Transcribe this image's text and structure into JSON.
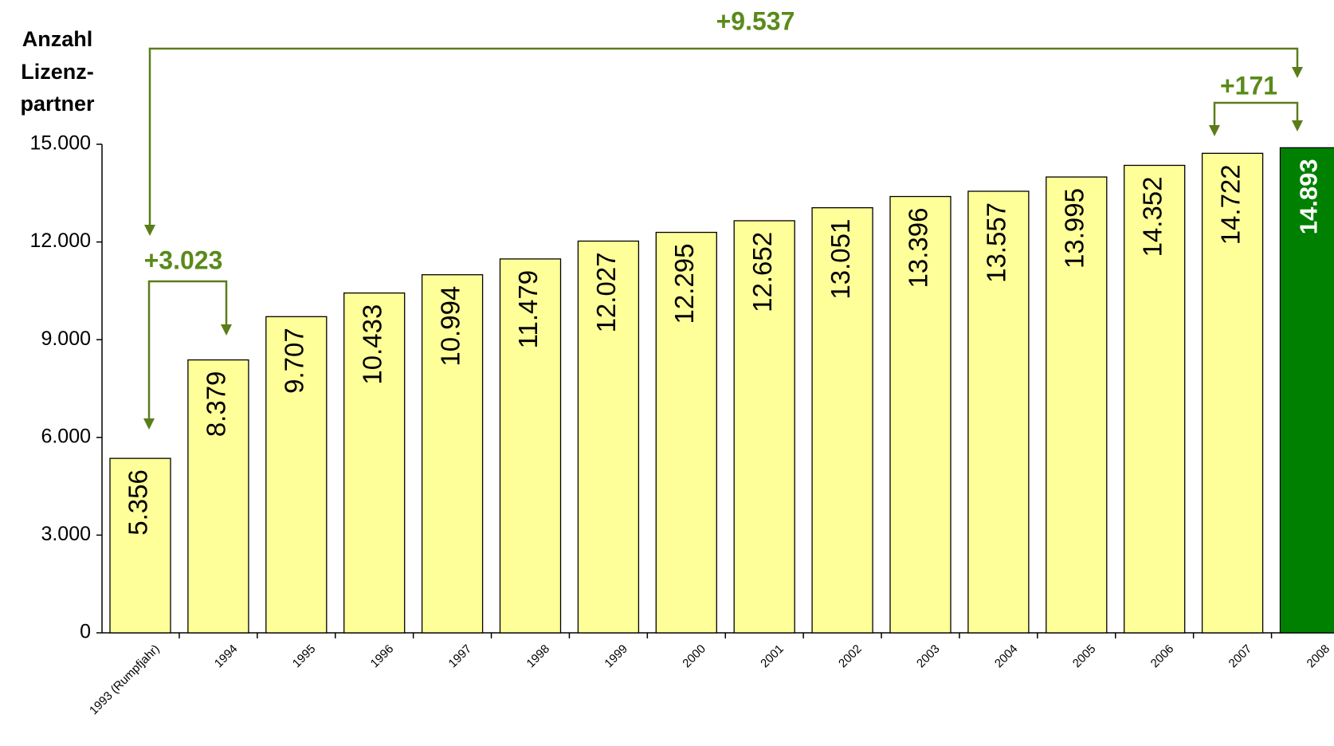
{
  "chart_data": {
    "type": "bar",
    "y_label_lines": [
      "Anzahl",
      "Lizenz-",
      "partner"
    ],
    "categories": [
      "1993 (Rumpfjahr)",
      "1994",
      "1995",
      "1996",
      "1997",
      "1998",
      "1999",
      "2000",
      "2001",
      "2002",
      "2003",
      "2004",
      "2005",
      "2006",
      "2007",
      "2008"
    ],
    "values": [
      5356,
      8379,
      9707,
      10433,
      10994,
      11479,
      12027,
      12295,
      12652,
      13051,
      13396,
      13557,
      13995,
      14352,
      14722,
      14893
    ],
    "value_labels": [
      "5.356",
      "8.379",
      "9.707",
      "10.433",
      "10.994",
      "11.479",
      "12.027",
      "12.295",
      "12.652",
      "13.051",
      "13.396",
      "13.557",
      "13.995",
      "14.352",
      "14.722",
      "14.893"
    ],
    "colors": [
      "#ffff99",
      "#ffff99",
      "#ffff99",
      "#ffff99",
      "#ffff99",
      "#ffff99",
      "#ffff99",
      "#ffff99",
      "#ffff99",
      "#ffff99",
      "#ffff99",
      "#ffff99",
      "#ffff99",
      "#ffff99",
      "#ffff99",
      "#008000"
    ],
    "ylim": [
      0,
      15000
    ],
    "yticks": [
      0,
      {
        "value": 3000,
        "label": "3.000"
      },
      {
        "value": 6000,
        "label": "6.000"
      },
      {
        "value": 9000,
        "label": "9.000"
      },
      {
        "value": 12000,
        "label": "12.000"
      },
      {
        "value": 15000,
        "label": "15.000"
      }
    ],
    "annotations": [
      "+9.537",
      "+3.023",
      "+171"
    ]
  }
}
